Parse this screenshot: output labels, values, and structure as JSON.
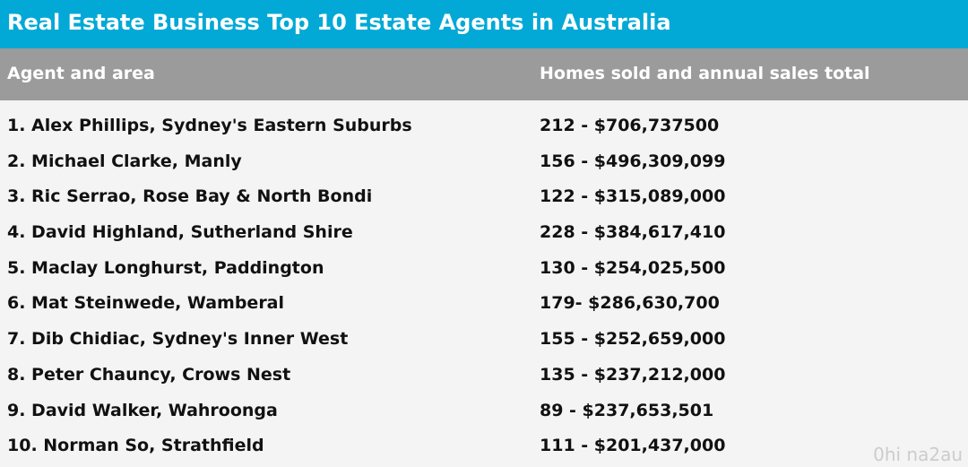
{
  "header": {
    "title": "Real Estate Business Top 10 Estate Agents in Australia"
  },
  "table": {
    "columns": [
      "Agent and area",
      "Homes sold and annual sales total"
    ],
    "rows": [
      [
        "1. Alex Phillips, Sydney's Eastern Suburbs",
        "212 - $706,737500"
      ],
      [
        "2. Michael Clarke, Manly",
        "156 - $496,309,099"
      ],
      [
        "3. Ric Serrao, Rose Bay & North Bondi",
        "122 - $315,089,000"
      ],
      [
        "4. David Highland, Sutherland Shire",
        "228 - $384,617,410"
      ],
      [
        "5. Maclay Longhurst, Paddington",
        "130 - $254,025,500"
      ],
      [
        "6. Mat Steinwede, Wamberal",
        "179- $286,630,700"
      ],
      [
        "7. Dib Chidiac, Sydney's Inner West",
        "155 - $252,659,000"
      ],
      [
        "8. Peter Chauncy, Crows Nest",
        "135 - $237,212,000"
      ],
      [
        "9. David Walker, Wahroonga",
        "89 - $237,653,501"
      ],
      [
        "10. Norman So, Strathfield",
        "111 - $201,437,000"
      ]
    ]
  },
  "watermark": "0hi na2au"
}
